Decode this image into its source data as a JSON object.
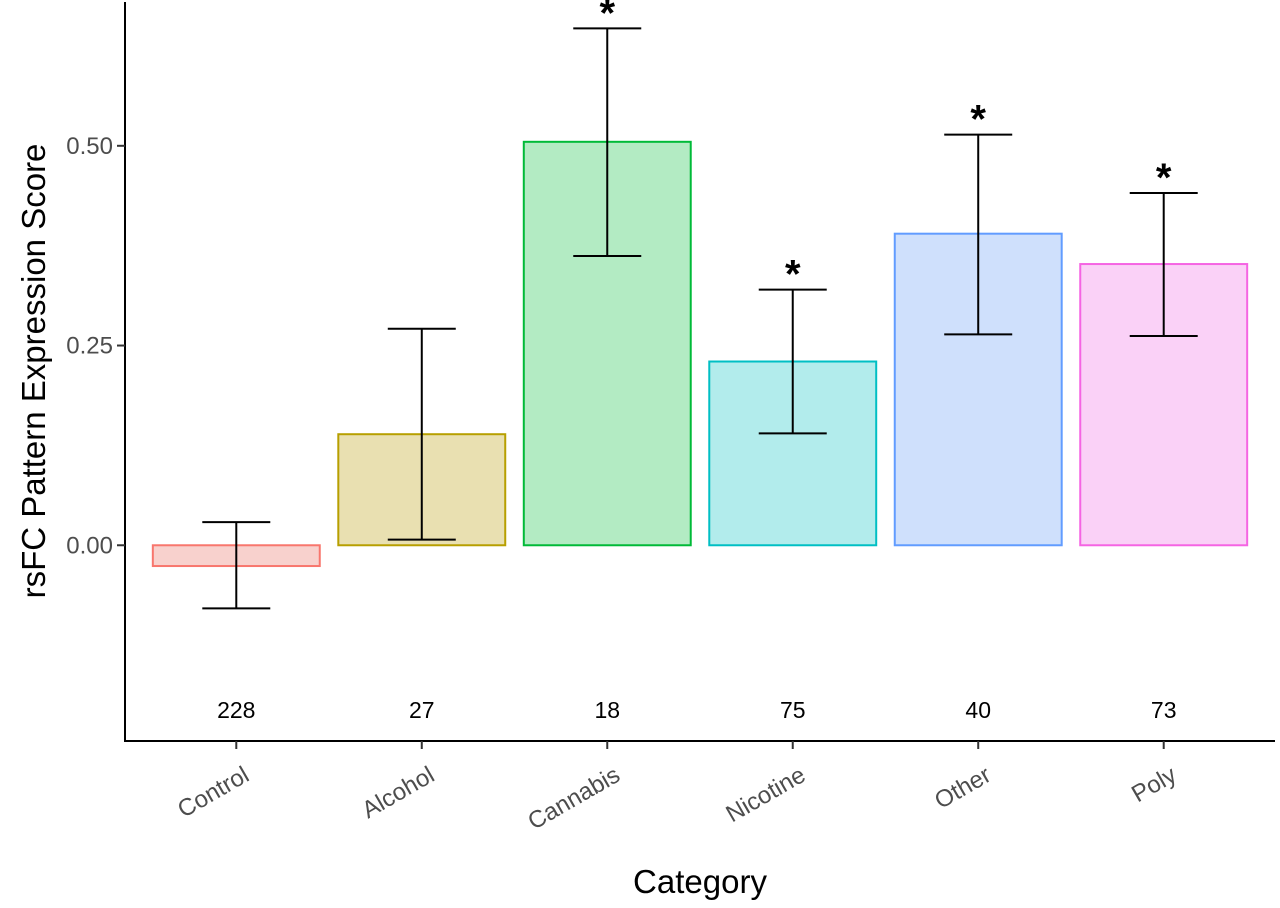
{
  "chart_data": {
    "type": "bar",
    "xlabel": "Category",
    "ylabel": "rsFC Pattern Expression Score",
    "categories": [
      "Control",
      "Alcohol",
      "Cannabis",
      "Nicotine",
      "Other",
      "Poly"
    ],
    "values": [
      -0.026,
      0.139,
      0.505,
      0.23,
      0.39,
      0.352
    ],
    "error_low": [
      -0.079,
      0.007,
      0.362,
      0.14,
      0.264,
      0.262
    ],
    "error_high": [
      0.029,
      0.271,
      0.647,
      0.32,
      0.514,
      0.441
    ],
    "counts": [
      "228",
      "27",
      "18",
      "75",
      "40",
      "73"
    ],
    "significance": [
      "",
      "",
      "*",
      "*",
      "*",
      "*"
    ],
    "yticks": [
      0.0,
      0.25,
      0.5
    ],
    "ytick_labels": [
      "0.00",
      "0.25",
      "0.50"
    ],
    "ylim": [
      -0.245,
      0.68
    ],
    "colors": {
      "fill": [
        "#f8d1cd",
        "#e9e0b1",
        "#b3ebc3",
        "#b2ecec",
        "#cfe0fc",
        "#fad1f7"
      ],
      "stroke": [
        "#f8766d",
        "#b79f00",
        "#00ba38",
        "#00bfc4",
        "#619cff",
        "#f564e3"
      ]
    },
    "grid": false,
    "legend": "none"
  }
}
